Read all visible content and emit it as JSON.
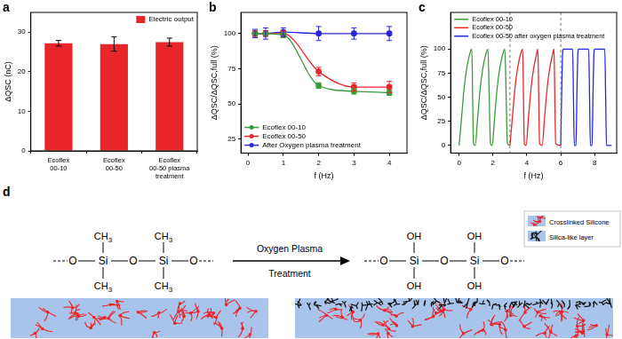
{
  "chart_data": [
    {
      "panel": "a",
      "type": "bar",
      "categories": [
        [
          "Ecoflex",
          "00-10"
        ],
        [
          "Ecoflex",
          "00-50"
        ],
        [
          "Ecoflex",
          "00-50 plasma",
          "treatment"
        ]
      ],
      "series": [
        {
          "name": "Electric output",
          "color": "#e8262a",
          "values": [
            27.2,
            27.0,
            27.5
          ],
          "errors": [
            0.7,
            1.8,
            1.0
          ]
        }
      ],
      "y_label": "ΔQSC (nC)",
      "ylim": [
        0,
        35
      ],
      "yticks": [
        0,
        10,
        20,
        30
      ],
      "grid": false,
      "legend": "upper right"
    },
    {
      "panel": "b",
      "type": "line",
      "x_label": "f (Hz)",
      "y_label": "ΔQSC/ΔQSC,full (%)",
      "xlim": [
        -0.2,
        4.5
      ],
      "xticks": [
        0,
        1,
        2,
        3,
        4
      ],
      "ylim": [
        15,
        115
      ],
      "yticks": [
        25,
        50,
        75,
        100
      ],
      "grid": false,
      "legend": "lower left",
      "series": [
        {
          "name": "Ecoflex 00-10",
          "color": "#3a9b3a",
          "marker": "circle",
          "x": [
            0.2,
            0.5,
            1,
            2,
            3,
            4
          ],
          "values": [
            100,
            100,
            99,
            63,
            59,
            58
          ],
          "errors": [
            2,
            2,
            2,
            2,
            2,
            2
          ]
        },
        {
          "name": "Ecoflex 00-50",
          "color": "#e8262a",
          "marker": "circle",
          "x": [
            0.2,
            0.5,
            1,
            2,
            3,
            4
          ],
          "values": [
            100,
            100,
            100,
            73,
            62,
            62
          ],
          "errors": [
            2,
            2,
            2,
            3,
            3,
            4
          ]
        },
        {
          "name": "After Oxygen plasma treatment",
          "color": "#2727e0",
          "marker": "circle",
          "x": [
            0.2,
            0.5,
            1,
            2,
            3,
            4
          ],
          "values": [
            100,
            100,
            101,
            100,
            100,
            100
          ],
          "errors": [
            3,
            4,
            3,
            5,
            4,
            5
          ]
        }
      ]
    },
    {
      "panel": "c",
      "type": "line",
      "x_label": "f (Hz)",
      "y_label": "ΔQSC/ΔQSC,full (%)",
      "xlim": [
        -0.5,
        9.3
      ],
      "xticks": [
        0,
        2,
        4,
        6,
        8
      ],
      "ylim": [
        -8,
        138
      ],
      "yticks": [
        0,
        25,
        50,
        75,
        100
      ],
      "grid": false,
      "legend": "upper left",
      "separators": [
        3,
        6
      ],
      "series": [
        {
          "name": "Ecoflex 00-10",
          "color": "#3a9b3a",
          "x": [
            0,
            0.15,
            0.3,
            0.45,
            0.6,
            0.75,
            0.8,
            0.85,
            0.95,
            1.1,
            1.25,
            1.4,
            1.55,
            1.7,
            1.78,
            1.85,
            1.95,
            2.1,
            2.25,
            2.4,
            2.55,
            2.7,
            2.78,
            2.85,
            3.0
          ],
          "values": [
            0,
            30,
            60,
            80,
            93,
            100,
            50,
            2,
            0,
            30,
            60,
            80,
            93,
            100,
            50,
            2,
            0,
            30,
            60,
            80,
            93,
            100,
            50,
            2,
            0
          ]
        },
        {
          "name": "Ecoflex 00-50",
          "color": "#e8262a",
          "x": [
            3.0,
            3.15,
            3.3,
            3.45,
            3.6,
            3.75,
            3.8,
            3.85,
            3.95,
            4.1,
            4.25,
            4.4,
            4.55,
            4.65,
            4.7,
            4.75,
            4.9,
            5.05,
            5.2,
            5.35,
            5.5,
            5.6,
            5.65,
            5.7,
            6.0
          ],
          "values": [
            0,
            30,
            60,
            80,
            93,
            100,
            50,
            2,
            0,
            30,
            60,
            80,
            93,
            100,
            50,
            2,
            0,
            30,
            60,
            80,
            93,
            100,
            50,
            2,
            0
          ]
        },
        {
          "name": "Ecoflex 00-50 after oxygen plasma treatment",
          "color": "#2727e0",
          "x": [
            6.0,
            6.05,
            6.1,
            6.15,
            6.7,
            6.75,
            6.8,
            6.9,
            6.95,
            7.0,
            7.05,
            7.65,
            7.7,
            7.75,
            7.85,
            7.9,
            7.95,
            8.0,
            8.6,
            8.65,
            8.7,
            9.0
          ],
          "values": [
            0,
            50,
            92,
            100,
            100,
            50,
            0,
            0,
            50,
            92,
            100,
            100,
            50,
            0,
            0,
            50,
            92,
            100,
            100,
            50,
            0,
            0
          ]
        }
      ]
    }
  ],
  "diagram": {
    "panel": "d",
    "before": {
      "backbone": [
        "O",
        "Si",
        "O",
        "Si",
        "O"
      ],
      "group": "CH3"
    },
    "after": {
      "backbone": [
        "O",
        "Si",
        "O",
        "Si",
        "O"
      ],
      "group": "OH"
    },
    "arrow_label": [
      "Oxygen Plasma",
      "Treatment"
    ],
    "legend": [
      {
        "label": "Crosslinked Silicone",
        "color": "#e8262a"
      },
      {
        "label": "Silica-like layer",
        "color": "#111111"
      }
    ]
  }
}
